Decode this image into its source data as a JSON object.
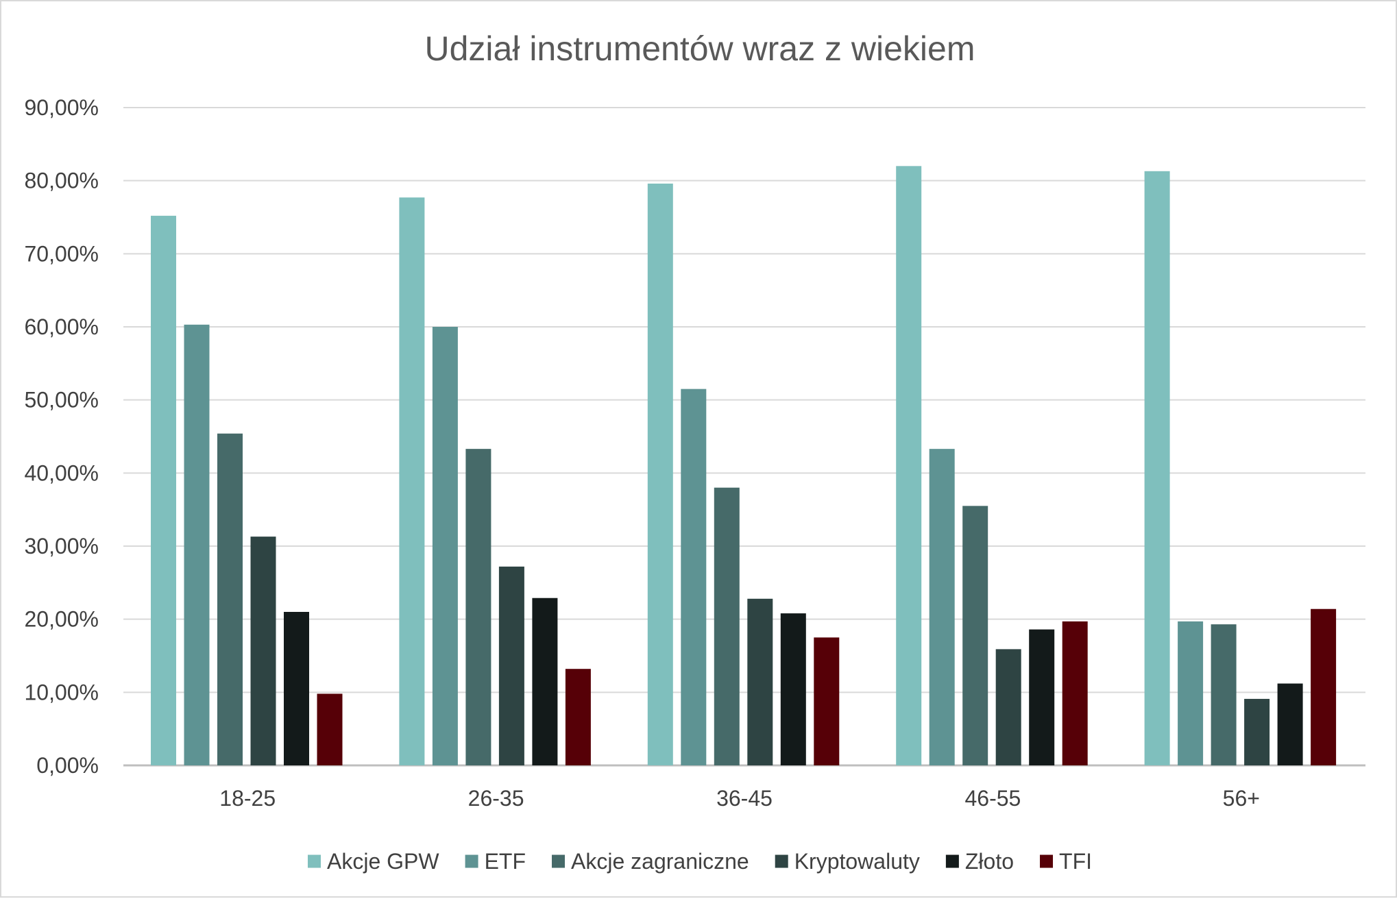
{
  "chart_data": {
    "type": "bar",
    "title": "Udział instrumentów wraz z wiekiem",
    "xlabel": "",
    "ylabel": "",
    "categories": [
      "18-25",
      "26-35",
      "36-45",
      "46-55",
      "56+"
    ],
    "ylim": [
      0,
      90
    ],
    "yticks": [
      "0,00%",
      "10,00%",
      "20,00%",
      "30,00%",
      "40,00%",
      "50,00%",
      "60,00%",
      "70,00%",
      "80,00%",
      "90,00%"
    ],
    "grid": true,
    "legend_position": "bottom",
    "series": [
      {
        "name": "Akcje GPW",
        "color": "#7fbfbd",
        "values": [
          75.2,
          77.7,
          79.6,
          82.0,
          81.3
        ]
      },
      {
        "name": "ETF",
        "color": "#5e9393",
        "values": [
          60.3,
          60.0,
          51.5,
          43.3,
          19.7
        ]
      },
      {
        "name": "Akcje zagraniczne",
        "color": "#466a69",
        "values": [
          45.4,
          43.3,
          38.0,
          35.5,
          19.3
        ]
      },
      {
        "name": "Kryptowaluty",
        "color": "#2e4443",
        "values": [
          31.3,
          27.2,
          22.8,
          15.9,
          9.1
        ]
      },
      {
        "name": "Złoto",
        "color": "#131a1a",
        "values": [
          21.0,
          22.9,
          20.8,
          18.6,
          11.2
        ]
      },
      {
        "name": "TFI",
        "color": "#560007",
        "values": [
          9.8,
          13.2,
          17.5,
          19.7,
          21.4
        ]
      }
    ]
  }
}
